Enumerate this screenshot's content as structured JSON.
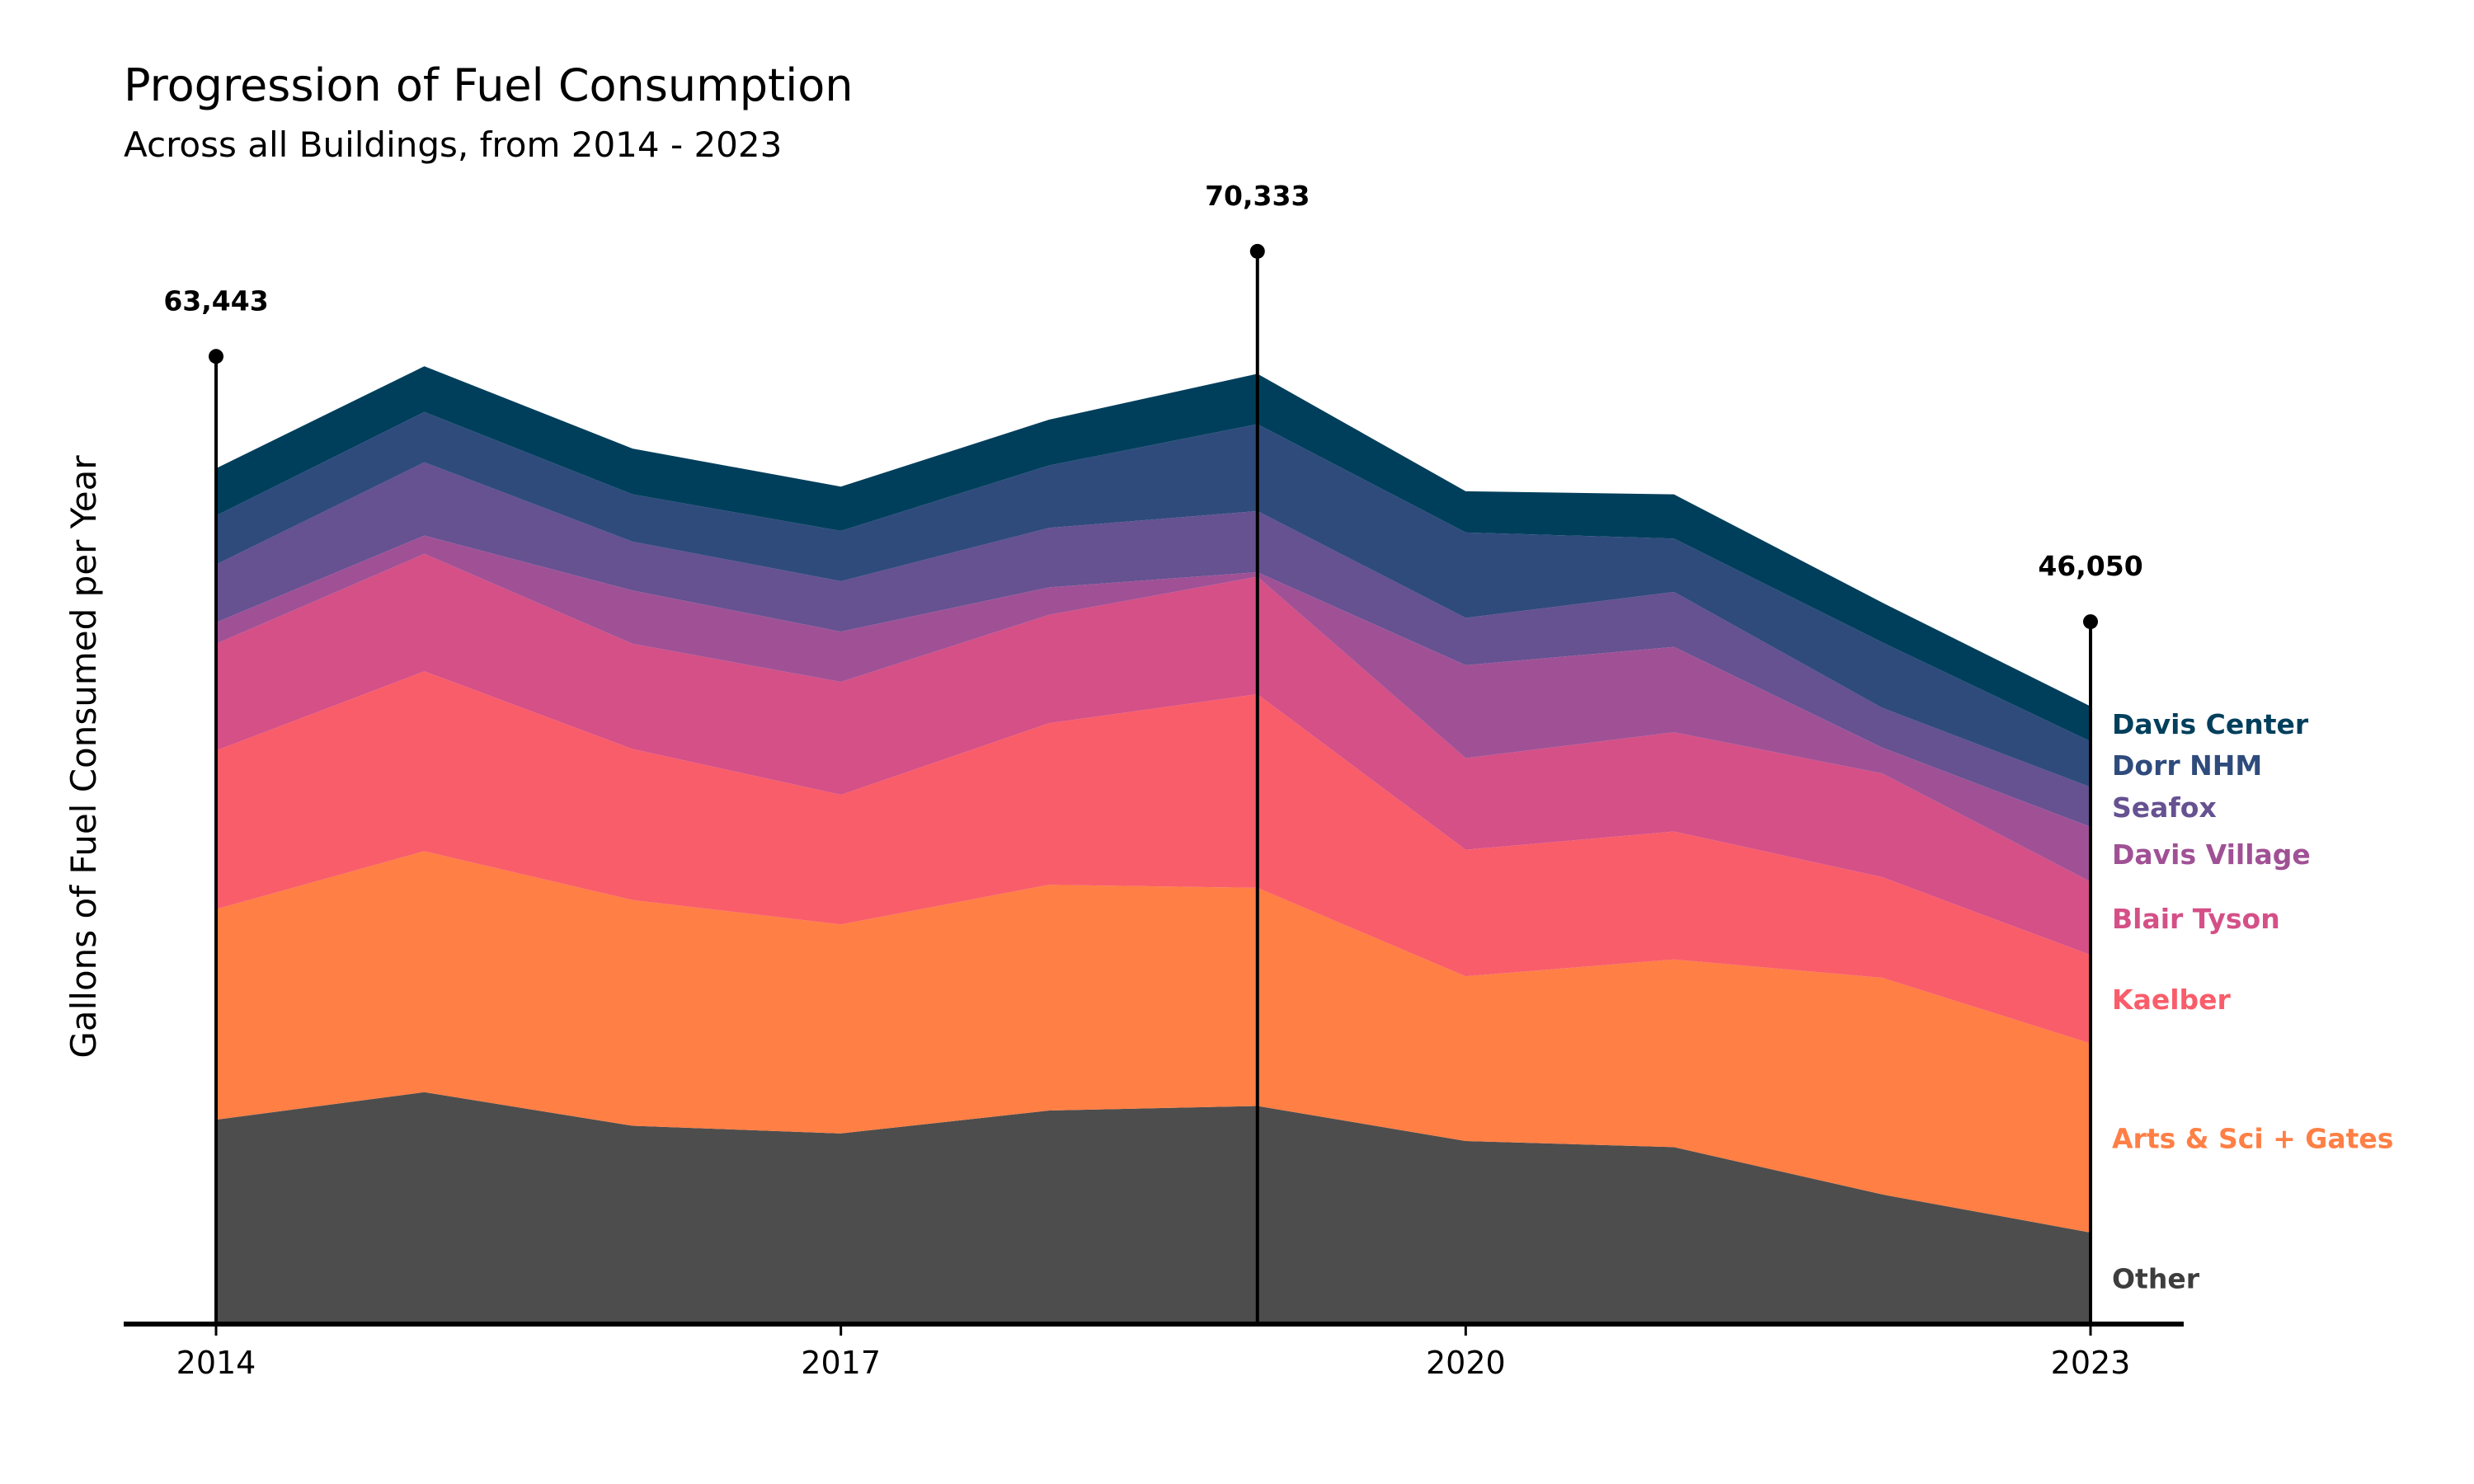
{
  "chart_data": {
    "type": "area",
    "title": "Progression of Fuel Consumption",
    "subtitle": "Across all Buildings, from 2014 - 2023",
    "xlabel": "",
    "ylabel": "Gallons of Fuel Consumed per Year",
    "x": [
      2014,
      2015,
      2016,
      2017,
      2018,
      2019,
      2020,
      2021,
      2022,
      2023
    ],
    "x_ticks": [
      "2014",
      "2017",
      "2020",
      "2023"
    ],
    "ylim": [
      0,
      80000
    ],
    "stacked": true,
    "grid": false,
    "legend": "direct labels at right end",
    "series": [
      {
        "name": "Other",
        "color": "#4d4d4d",
        "values": [
          13400,
          15200,
          13000,
          12500,
          14000,
          14300,
          12000,
          11600,
          8500,
          6000
        ]
      },
      {
        "name": "Arts & Sci + Gates",
        "color": "#ff7f45",
        "values": [
          13800,
          15800,
          14800,
          13700,
          14800,
          14300,
          10800,
          12300,
          14200,
          12400
        ]
      },
      {
        "name": "Kaelber",
        "color": "#f95d6a",
        "values": [
          10400,
          11800,
          9900,
          8500,
          10600,
          12700,
          8300,
          8400,
          6600,
          5800
        ]
      },
      {
        "name": "Blair Tyson",
        "color": "#d45087",
        "values": [
          7000,
          7700,
          6900,
          7400,
          7100,
          7700,
          6000,
          6500,
          6800,
          4800
        ]
      },
      {
        "name": "Davis Village",
        "color": "#a05195",
        "values": [
          1400,
          1200,
          3500,
          3300,
          1800,
          300,
          6100,
          5600,
          1700,
          3600
        ]
      },
      {
        "name": "Seafox",
        "color": "#665191",
        "values": [
          3800,
          4800,
          3200,
          3300,
          3900,
          4000,
          3100,
          3600,
          2600,
          2600
        ]
      },
      {
        "name": "Dorr NHM",
        "color": "#2f4b7c",
        "values": [
          3200,
          3300,
          3100,
          3300,
          4100,
          5700,
          5600,
          3500,
          4300,
          3000
        ]
      },
      {
        "name": "Davis Center",
        "color": "#003f5c",
        "values": [
          3100,
          3000,
          3000,
          2900,
          3000,
          3300,
          2700,
          2900,
          2600,
          2300
        ]
      }
    ],
    "annotations": [
      {
        "x": 2014,
        "y": 63443,
        "label": "63,443"
      },
      {
        "x": 2019,
        "y": 70333,
        "label": "70,333"
      },
      {
        "x": 2023,
        "y": 46050,
        "label": "46,050"
      }
    ]
  }
}
